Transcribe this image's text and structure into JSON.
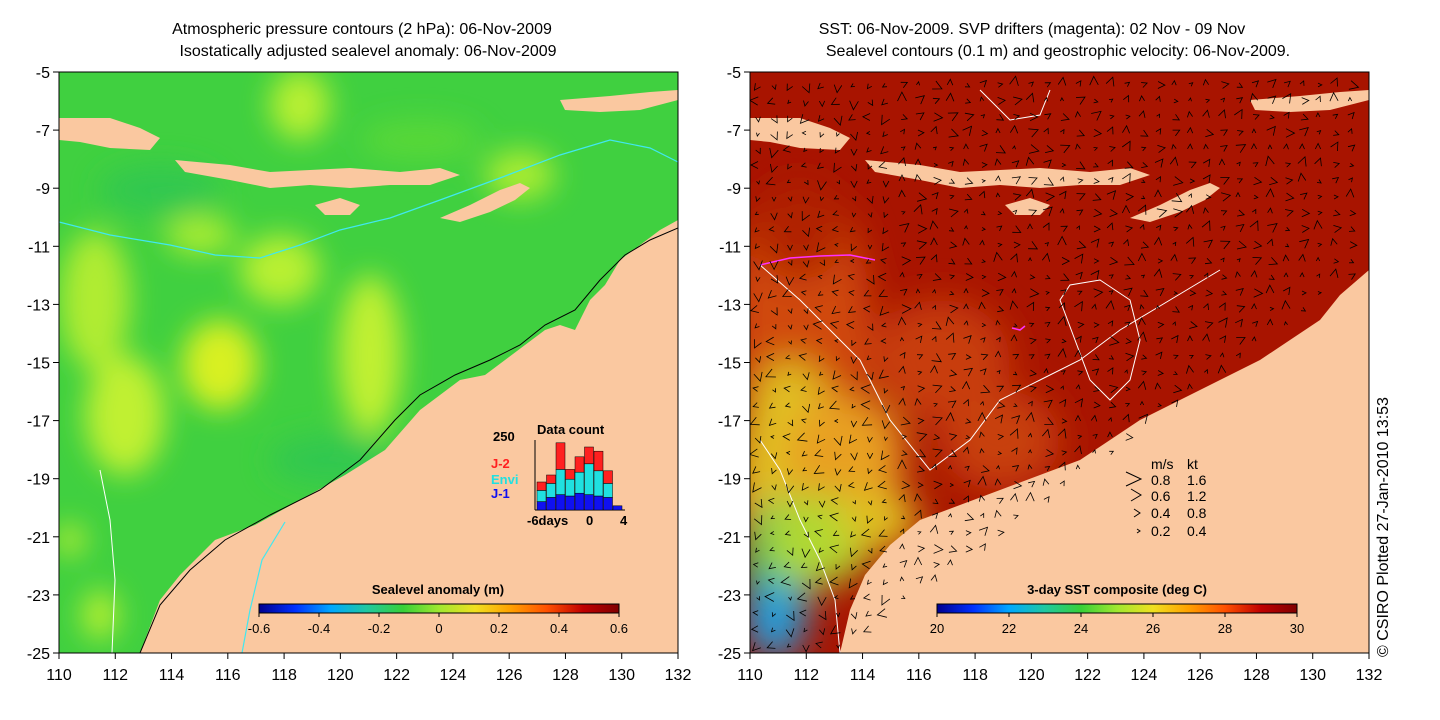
{
  "left_panel": {
    "title_line1": "Atmospheric pressure contours (2 hPa): 06-Nov-2009",
    "title_line2": "Isostatically adjusted sealevel anomaly: 06-Nov-2009",
    "colorbar_title": "Sealevel anomaly (m)",
    "colorbar_ticks": [
      "-0.6",
      "-0.4",
      "-0.2",
      "0",
      "0.2",
      "0.4",
      "0.6"
    ],
    "colorbar_colors": [
      "#00008f",
      "#0030ff",
      "#00a8ff",
      "#20c8a0",
      "#38d038",
      "#a0e830",
      "#f0e020",
      "#ffa000",
      "#ff5000",
      "#c00000",
      "#800000"
    ],
    "inset": {
      "title": "Data count",
      "y_max_label": "250",
      "x_labels": [
        "-6days",
        "0",
        "4"
      ],
      "legend": [
        {
          "label": "J-2",
          "color": "#ff2020"
        },
        {
          "label": "Envi",
          "color": "#20e0e0"
        },
        {
          "label": "J-1",
          "color": "#1010f0"
        }
      ],
      "bars": [
        {
          "j1": 30,
          "envi": 40,
          "j2": 30
        },
        {
          "j1": 45,
          "envi": 50,
          "j2": 30
        },
        {
          "j1": 55,
          "envi": 90,
          "j2": 95
        },
        {
          "j1": 50,
          "envi": 60,
          "j2": 35
        },
        {
          "j1": 60,
          "envi": 75,
          "j2": 55
        },
        {
          "j1": 55,
          "envi": 110,
          "j2": 60
        },
        {
          "j1": 50,
          "envi": 90,
          "j2": 70
        },
        {
          "j1": 45,
          "envi": 50,
          "j2": 45
        },
        {
          "j1": 15,
          "envi": 0,
          "j2": 0
        }
      ]
    }
  },
  "right_panel": {
    "title_line1": "SST: 06-Nov-2009. SVP drifters (magenta): 02 Nov - 09 Nov",
    "title_line2": "Sealevel contours (0.1 m) and geostrophic velocity: 06-Nov-2009.",
    "colorbar_title": "3-day SST composite (deg C)",
    "colorbar_ticks": [
      "20",
      "22",
      "24",
      "26",
      "28",
      "30"
    ],
    "colorbar_colors": [
      "#00008f",
      "#0030ff",
      "#00a8ff",
      "#20c8a0",
      "#38d038",
      "#a0e830",
      "#f0e020",
      "#ffa000",
      "#ff5000",
      "#c00000",
      "#800000"
    ],
    "velocity_legend": {
      "header_ms": "m/s",
      "header_kt": "kt",
      "rows": [
        {
          "ms": "0.8",
          "kt": "1.6"
        },
        {
          "ms": "0.6",
          "kt": "1.2"
        },
        {
          "ms": "0.4",
          "kt": "0.8"
        },
        {
          "ms": "0.2",
          "kt": "0.4"
        }
      ]
    }
  },
  "axes": {
    "x_ticks": [
      "110",
      "112",
      "114",
      "116",
      "118",
      "120",
      "122",
      "124",
      "126",
      "128",
      "130",
      "132"
    ],
    "y_ticks": [
      "-5",
      "-7",
      "-9",
      "-11",
      "-13",
      "-15",
      "-17",
      "-19",
      "-21",
      "-23",
      "-25"
    ]
  },
  "credit": "© CSIRO Plotted 27-Jan-2010 13:53",
  "colors": {
    "land": "#fac8a0",
    "ocean_green": "#38d038",
    "yellow_green": "#b8f030",
    "sst_dark_red": "#a01000",
    "sst_red": "#c02000",
    "sst_orange": "#e06010",
    "sst_yellow": "#e0d020",
    "sst_green": "#60c040",
    "sst_cyan": "#20b0e0",
    "envi_cyan": "#30e0e0"
  }
}
